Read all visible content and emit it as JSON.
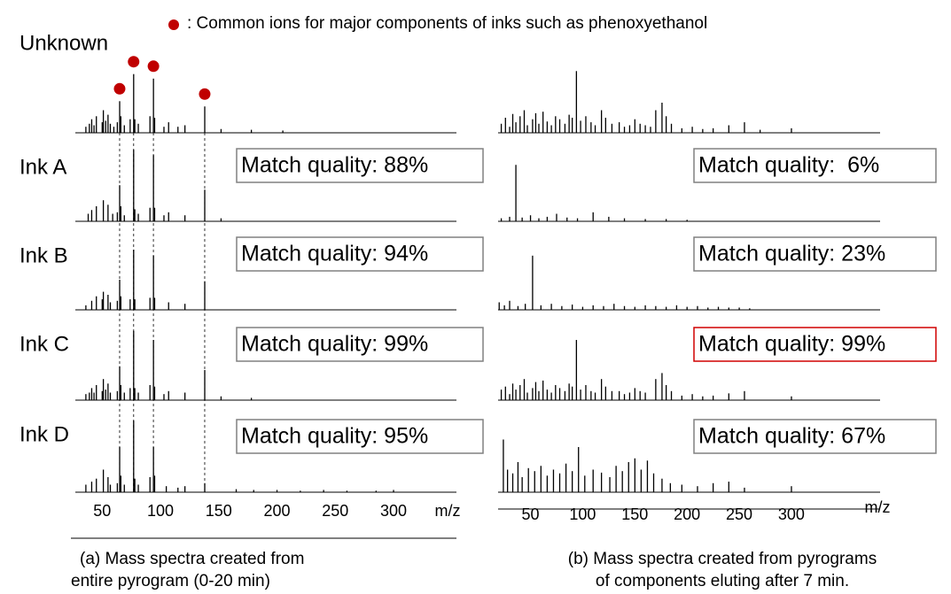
{
  "legend_note": ": Common ions for major components of inks such as phenoxyethanol",
  "rows": [
    "Unknown",
    "Ink A",
    "Ink B",
    "Ink C",
    "Ink D"
  ],
  "panels": [
    {
      "xlabel": "m/z",
      "xlim": [
        27,
        354
      ],
      "ylim": [
        0,
        100
      ],
      "xticks": [
        50,
        100,
        150,
        200,
        250,
        300
      ],
      "marked_mz": [
        65,
        77,
        94,
        138
      ],
      "caption": [
        "(a) Mass spectra created from",
        "entire pyrogram (0-20 min)"
      ],
      "spectra": [
        {
          "mz": [
            36,
            39,
            41,
            43,
            45,
            50,
            51,
            53,
            55,
            57,
            60,
            63,
            65,
            66,
            69,
            74,
            77,
            78,
            81,
            91,
            94,
            95,
            103,
            107,
            115,
            121,
            138,
            152,
            178,
            205
          ],
          "intensity": [
            8,
            12,
            18,
            10,
            22,
            14,
            30,
            16,
            24,
            12,
            8,
            14,
            42,
            22,
            10,
            18,
            78,
            18,
            12,
            22,
            72,
            20,
            8,
            14,
            8,
            10,
            35,
            5,
            4,
            3
          ]
        },
        {
          "mz": [
            38,
            41,
            45,
            51,
            55,
            59,
            63,
            65,
            66,
            69,
            77,
            78,
            81,
            91,
            94,
            95,
            103,
            107,
            121,
            138,
            152
          ],
          "intensity": [
            10,
            15,
            20,
            28,
            22,
            10,
            12,
            48,
            20,
            8,
            95,
            16,
            10,
            18,
            88,
            18,
            8,
            12,
            8,
            42,
            4
          ],
          "match": "Match quality: 88%"
        },
        {
          "mz": [
            36,
            41,
            45,
            50,
            51,
            55,
            57,
            63,
            65,
            66,
            74,
            77,
            78,
            91,
            94,
            95,
            107,
            121,
            138
          ],
          "intensity": [
            6,
            12,
            18,
            14,
            24,
            20,
            10,
            12,
            40,
            18,
            14,
            80,
            14,
            16,
            72,
            16,
            10,
            8,
            38
          ],
          "match": "Match quality: 94%"
        },
        {
          "mz": [
            36,
            39,
            41,
            43,
            45,
            50,
            51,
            53,
            55,
            57,
            63,
            65,
            66,
            69,
            74,
            77,
            78,
            81,
            91,
            94,
            95,
            103,
            107,
            121,
            138,
            152,
            178
          ],
          "intensity": [
            8,
            10,
            16,
            10,
            20,
            12,
            28,
            14,
            22,
            10,
            12,
            45,
            20,
            10,
            16,
            92,
            16,
            10,
            20,
            80,
            18,
            8,
            12,
            10,
            40,
            5,
            3
          ],
          "match": "Match quality: 99%"
        },
        {
          "mz": [
            36,
            41,
            45,
            51,
            55,
            57,
            63,
            65,
            66,
            69,
            77,
            78,
            81,
            91,
            94,
            95,
            105,
            115,
            121,
            138,
            165,
            180,
            200,
            220,
            240,
            260,
            285,
            300
          ],
          "intensity": [
            10,
            14,
            18,
            30,
            20,
            10,
            12,
            60,
            22,
            10,
            95,
            18,
            10,
            20,
            60,
            22,
            8,
            6,
            8,
            12,
            4,
            3,
            3,
            2,
            3,
            2,
            2,
            3
          ],
          "match": "Match quality: 95%"
        }
      ]
    },
    {
      "xlabel": "m/z",
      "xlim": [
        19,
        385
      ],
      "ylim": [
        0,
        100
      ],
      "xticks": [
        50,
        100,
        150,
        200,
        250,
        300
      ],
      "axis_line": true,
      "caption": [
        "(b) Mass spectra created from pyrograms",
        "of components eluting after 7 min."
      ],
      "spectra": [
        {
          "mz": [
            22,
            26,
            30,
            33,
            36,
            40,
            44,
            47,
            52,
            55,
            58,
            62,
            66,
            70,
            74,
            78,
            83,
            87,
            90,
            94,
            98,
            103,
            108,
            112,
            118,
            122,
            128,
            135,
            140,
            145,
            150,
            155,
            160,
            165,
            170,
            176,
            180,
            185,
            195,
            205,
            215,
            225,
            240,
            255,
            270,
            300
          ],
          "intensity": [
            12,
            20,
            8,
            25,
            14,
            22,
            30,
            10,
            18,
            26,
            12,
            28,
            15,
            10,
            22,
            18,
            12,
            24,
            20,
            82,
            16,
            22,
            14,
            10,
            30,
            20,
            12,
            14,
            8,
            10,
            18,
            12,
            10,
            8,
            30,
            40,
            22,
            12,
            6,
            8,
            5,
            6,
            10,
            14,
            4,
            6
          ]
        },
        {
          "mz": [
            22,
            30,
            36,
            42,
            50,
            58,
            66,
            75,
            85,
            95,
            110,
            125,
            140,
            160,
            180,
            200
          ],
          "intensity": [
            4,
            6,
            75,
            5,
            8,
            4,
            6,
            10,
            5,
            4,
            12,
            6,
            4,
            3,
            3,
            2
          ],
          "match": "Match quality:  6%"
        },
        {
          "mz": [
            20,
            25,
            30,
            38,
            45,
            52,
            60,
            70,
            80,
            90,
            100,
            110,
            120,
            130,
            140,
            150,
            160,
            170,
            180,
            190,
            200,
            210,
            220,
            230,
            240,
            250,
            260
          ],
          "intensity": [
            10,
            6,
            12,
            5,
            8,
            72,
            6,
            8,
            5,
            7,
            4,
            6,
            5,
            8,
            5,
            4,
            6,
            5,
            4,
            6,
            4,
            5,
            3,
            4,
            3,
            3,
            2
          ],
          "match": "Match quality: 23%"
        },
        {
          "mz": [
            22,
            26,
            30,
            33,
            36,
            40,
            44,
            47,
            52,
            55,
            58,
            62,
            66,
            70,
            74,
            78,
            83,
            87,
            90,
            94,
            98,
            103,
            108,
            112,
            118,
            122,
            128,
            135,
            140,
            145,
            150,
            155,
            160,
            170,
            176,
            180,
            185,
            195,
            205,
            215,
            225,
            240,
            255,
            300
          ],
          "intensity": [
            14,
            18,
            8,
            22,
            14,
            20,
            28,
            10,
            16,
            24,
            12,
            26,
            14,
            10,
            20,
            16,
            12,
            22,
            18,
            80,
            14,
            20,
            12,
            10,
            28,
            18,
            12,
            12,
            8,
            10,
            16,
            12,
            10,
            28,
            36,
            20,
            12,
            6,
            8,
            5,
            6,
            9,
            12,
            5
          ],
          "match": "Match quality: 99%",
          "highlight": true
        },
        {
          "mz": [
            24,
            28,
            33,
            38,
            42,
            48,
            54,
            60,
            66,
            72,
            78,
            84,
            90,
            96,
            102,
            110,
            118,
            126,
            132,
            138,
            144,
            150,
            156,
            162,
            168,
            176,
            184,
            195,
            210,
            225,
            240,
            255,
            300
          ],
          "intensity": [
            70,
            30,
            25,
            40,
            20,
            32,
            28,
            35,
            22,
            30,
            25,
            38,
            28,
            60,
            22,
            30,
            26,
            20,
            35,
            28,
            40,
            45,
            30,
            42,
            25,
            18,
            12,
            10,
            8,
            12,
            14,
            6,
            8
          ],
          "match": "Match quality: 67%"
        }
      ]
    }
  ]
}
